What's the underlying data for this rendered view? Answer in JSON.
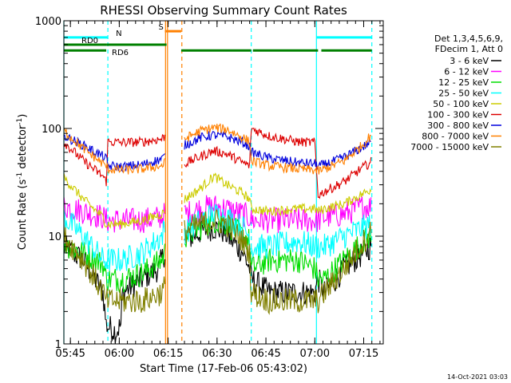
{
  "header": {
    "title": "RHESSI Observing Summary Count Rates"
  },
  "footer": {
    "timestamp": "14-Oct-2021 03:03"
  },
  "legend": {
    "header_lines": [
      "Det 1,3,4,5,6,9,",
      "FDecim 1, Att 0"
    ],
    "entries": [
      {
        "label": "3 - 6 keV",
        "color": "#000000"
      },
      {
        "label": "6 - 12 keV",
        "color": "#ff00ff"
      },
      {
        "label": "12 - 25 keV",
        "color": "#00dd00"
      },
      {
        "label": "25 - 50 keV",
        "color": "#00ffff"
      },
      {
        "label": "50 - 100 keV",
        "color": "#cccc00"
      },
      {
        "label": "100 - 300 keV",
        "color": "#dd0000"
      },
      {
        "label": "300 - 800 keV",
        "color": "#0000dd"
      },
      {
        "label": "800 - 7000 keV",
        "color": "#ff8000"
      },
      {
        "label": "7000 - 15000 keV",
        "color": "#808000"
      }
    ]
  },
  "chart_data": {
    "type": "line",
    "title": "RHESSI Observing Summary Count Rates",
    "xlabel": "Start Time (17-Feb-06 05:43:02)",
    "ylabel_main": "Count Rate (s",
    "ylabel_sup1": "-1",
    "ylabel_mid": " detector",
    "ylabel_sup2": "-1",
    "ylabel_end": ")",
    "x_unit": "minutes since 05:43:02",
    "xlim": [
      0,
      98
    ],
    "ylim": [
      1,
      1000
    ],
    "yscale": "log",
    "x_ticks": [
      {
        "label": "05:45",
        "value": 2
      },
      {
        "label": "06:00",
        "value": 17
      },
      {
        "label": "06:15",
        "value": 32
      },
      {
        "label": "06:30",
        "value": 47
      },
      {
        "label": "06:45",
        "value": 62
      },
      {
        "label": "07:00",
        "value": 77
      },
      {
        "label": "07:15",
        "value": 92
      }
    ],
    "y_ticks": [
      {
        "label": "1",
        "value": 1
      },
      {
        "label": "10",
        "value": 10
      },
      {
        "label": "100",
        "value": 100
      },
      {
        "label": "1000",
        "value": 1000
      }
    ],
    "gaps": [
      [
        31,
        37
      ]
    ],
    "series": [
      {
        "name": "3 - 6 keV",
        "color": "#000000",
        "points": [
          [
            0,
            8
          ],
          [
            6,
            6
          ],
          [
            12,
            3
          ],
          [
            13,
            1.5
          ],
          [
            16,
            1.3
          ],
          [
            17.5,
            1.5
          ],
          [
            18,
            3
          ],
          [
            24,
            4
          ],
          [
            29,
            5
          ],
          [
            30,
            6
          ],
          [
            31,
            7
          ],
          [
            37,
            9
          ],
          [
            42,
            11
          ],
          [
            46,
            12
          ],
          [
            49,
            11
          ],
          [
            55,
            7
          ],
          [
            57,
            5
          ],
          [
            57.5,
            4
          ],
          [
            63,
            3
          ],
          [
            72,
            3
          ],
          [
            77,
            3
          ],
          [
            78,
            4
          ],
          [
            80,
            3
          ],
          [
            86,
            5
          ],
          [
            92,
            7
          ],
          [
            94,
            8
          ],
          [
            94.5,
            9
          ]
        ]
      },
      {
        "name": "6 - 12 keV",
        "color": "#ff00ff",
        "points": [
          [
            0,
            19
          ],
          [
            6,
            17
          ],
          [
            12,
            15
          ],
          [
            13,
            14
          ],
          [
            18,
            14
          ],
          [
            24,
            14
          ],
          [
            30,
            15
          ],
          [
            31,
            16
          ],
          [
            37,
            16
          ],
          [
            42,
            18
          ],
          [
            46,
            19
          ],
          [
            50,
            18
          ],
          [
            55,
            16
          ],
          [
            57,
            15
          ],
          [
            57.5,
            14
          ],
          [
            63,
            14
          ],
          [
            72,
            14
          ],
          [
            77,
            14
          ],
          [
            78,
            14
          ],
          [
            80,
            15
          ],
          [
            86,
            16
          ],
          [
            92,
            19
          ],
          [
            94,
            19
          ],
          [
            94.5,
            19
          ]
        ]
      },
      {
        "name": "12 - 25 keV",
        "color": "#00dd00",
        "points": [
          [
            0,
            8.5
          ],
          [
            6,
            7
          ],
          [
            12,
            5.5
          ],
          [
            13,
            4
          ],
          [
            18,
            4
          ],
          [
            24,
            4.5
          ],
          [
            30,
            6
          ],
          [
            31,
            7
          ],
          [
            37,
            10
          ],
          [
            42,
            12
          ],
          [
            46,
            14
          ],
          [
            50,
            13
          ],
          [
            55,
            10
          ],
          [
            57,
            9
          ],
          [
            57.5,
            5
          ],
          [
            63,
            6
          ],
          [
            72,
            6
          ],
          [
            77,
            5
          ],
          [
            78,
            4
          ],
          [
            80,
            4
          ],
          [
            86,
            6
          ],
          [
            92,
            9
          ],
          [
            94,
            10
          ],
          [
            94.5,
            10
          ]
        ]
      },
      {
        "name": "25 - 50 keV",
        "color": "#00ffff",
        "points": [
          [
            0,
            15
          ],
          [
            6,
            10
          ],
          [
            12,
            6
          ],
          [
            13,
            6
          ],
          [
            18,
            6
          ],
          [
            24,
            7
          ],
          [
            30,
            10
          ],
          [
            31,
            12
          ],
          [
            37,
            11
          ],
          [
            42,
            14
          ],
          [
            46,
            16
          ],
          [
            50,
            15
          ],
          [
            55,
            12
          ],
          [
            57,
            10
          ],
          [
            57.5,
            8
          ],
          [
            63,
            8
          ],
          [
            72,
            9
          ],
          [
            77,
            8
          ],
          [
            78,
            8
          ],
          [
            80,
            8
          ],
          [
            86,
            10
          ],
          [
            92,
            12
          ],
          [
            94,
            13
          ],
          [
            94.5,
            13
          ]
        ]
      },
      {
        "name": "50 - 100 keV",
        "color": "#cccc00",
        "points": [
          [
            0,
            35
          ],
          [
            6,
            22
          ],
          [
            12,
            15
          ],
          [
            13,
            13
          ],
          [
            18,
            13
          ],
          [
            24,
            14
          ],
          [
            30,
            16
          ],
          [
            31,
            17
          ],
          [
            37,
            22
          ],
          [
            42,
            28
          ],
          [
            46,
            36
          ],
          [
            50,
            30
          ],
          [
            55,
            25
          ],
          [
            57,
            22
          ],
          [
            57.5,
            18
          ],
          [
            63,
            17
          ],
          [
            72,
            18
          ],
          [
            77,
            18
          ],
          [
            78,
            17
          ],
          [
            80,
            18
          ],
          [
            86,
            20
          ],
          [
            92,
            25
          ],
          [
            94,
            27
          ],
          [
            94.5,
            28
          ]
        ]
      },
      {
        "name": "100 - 300 keV",
        "color": "#dd0000",
        "points": [
          [
            0,
            75
          ],
          [
            6,
            50
          ],
          [
            12,
            36
          ],
          [
            13,
            32
          ],
          [
            13.5,
            75
          ],
          [
            18,
            74
          ],
          [
            24,
            75
          ],
          [
            30,
            80
          ],
          [
            31,
            85
          ],
          [
            37,
            47
          ],
          [
            42,
            55
          ],
          [
            46,
            62
          ],
          [
            50,
            58
          ],
          [
            55,
            48
          ],
          [
            57,
            45
          ],
          [
            57.5,
            100
          ],
          [
            63,
            85
          ],
          [
            72,
            75
          ],
          [
            77,
            74
          ],
          [
            78,
            24
          ],
          [
            80,
            26
          ],
          [
            86,
            32
          ],
          [
            92,
            44
          ],
          [
            94,
            48
          ],
          [
            94.5,
            50
          ]
        ]
      },
      {
        "name": "300 - 800 keV",
        "color": "#0000dd",
        "points": [
          [
            0,
            85
          ],
          [
            6,
            70
          ],
          [
            12,
            55
          ],
          [
            13,
            52
          ],
          [
            13.5,
            45
          ],
          [
            18,
            44
          ],
          [
            24,
            46
          ],
          [
            30,
            52
          ],
          [
            31,
            55
          ],
          [
            37,
            70
          ],
          [
            42,
            82
          ],
          [
            46,
            87
          ],
          [
            50,
            84
          ],
          [
            55,
            74
          ],
          [
            57,
            68
          ],
          [
            57.5,
            60
          ],
          [
            63,
            53
          ],
          [
            72,
            48
          ],
          [
            77,
            47
          ],
          [
            78,
            45
          ],
          [
            80,
            46
          ],
          [
            86,
            54
          ],
          [
            92,
            68
          ],
          [
            94,
            75
          ],
          [
            94.5,
            80
          ]
        ]
      },
      {
        "name": "800 - 7000 keV",
        "color": "#ff8000",
        "points": [
          [
            0,
            95
          ],
          [
            6,
            65
          ],
          [
            12,
            47
          ],
          [
            13,
            45
          ],
          [
            13.5,
            42
          ],
          [
            18,
            41
          ],
          [
            24,
            42
          ],
          [
            30,
            45
          ],
          [
            31,
            48
          ],
          [
            37,
            80
          ],
          [
            42,
            95
          ],
          [
            46,
            102
          ],
          [
            50,
            98
          ],
          [
            55,
            82
          ],
          [
            57,
            75
          ],
          [
            57.5,
            50
          ],
          [
            63,
            45
          ],
          [
            72,
            42
          ],
          [
            77,
            41
          ],
          [
            78,
            40
          ],
          [
            80,
            42
          ],
          [
            86,
            50
          ],
          [
            92,
            72
          ],
          [
            94,
            85
          ],
          [
            94.5,
            90
          ]
        ]
      },
      {
        "name": "7000 - 15000 keV",
        "color": "#808000",
        "points": [
          [
            0,
            10
          ],
          [
            6,
            6
          ],
          [
            12,
            3
          ],
          [
            13,
            2.5
          ],
          [
            18,
            2.5
          ],
          [
            24,
            2.5
          ],
          [
            30,
            3
          ],
          [
            31,
            3.5
          ],
          [
            37,
            11
          ],
          [
            42,
            13
          ],
          [
            46,
            14
          ],
          [
            50,
            13
          ],
          [
            55,
            9
          ],
          [
            57,
            7
          ],
          [
            57.5,
            3
          ],
          [
            63,
            2.5
          ],
          [
            72,
            2.5
          ],
          [
            77,
            2.5
          ],
          [
            78,
            2.5
          ],
          [
            80,
            3
          ],
          [
            86,
            5
          ],
          [
            92,
            9
          ],
          [
            94,
            11
          ],
          [
            94.5,
            12
          ]
        ]
      }
    ],
    "status_bars": [
      {
        "label": "N",
        "color": "#00ffff",
        "value": 700,
        "spans": [
          [
            0,
            13.5
          ],
          [
            77.5,
            94.5
          ]
        ]
      },
      {
        "label": "RD0",
        "color": "#008000",
        "value": 600,
        "spans": [
          [
            0,
            13
          ],
          [
            13,
            31.5
          ]
        ]
      },
      {
        "label": "RD6",
        "color": "#008000",
        "value": 530,
        "spans": [
          [
            0,
            13
          ],
          [
            36,
            57.5
          ],
          [
            58,
            78
          ],
          [
            79,
            94.5
          ]
        ]
      },
      {
        "label": "S",
        "color": "#ff8000",
        "value": 800,
        "spans": [
          [
            31,
            36
          ]
        ]
      }
    ],
    "vlines": [
      {
        "x": 0,
        "color": "#00ffff",
        "style": "solid"
      },
      {
        "x": 13.5,
        "color": "#00ffff",
        "style": "dashed"
      },
      {
        "x": 31.2,
        "color": "#ff8000",
        "style": "solid"
      },
      {
        "x": 31.8,
        "color": "#ff8000",
        "style": "solid"
      },
      {
        "x": 36.2,
        "color": "#ff8000",
        "style": "dashed"
      },
      {
        "x": 57.5,
        "color": "#00ffff",
        "style": "dashed"
      },
      {
        "x": 77.5,
        "color": "#00ffff",
        "style": "solid"
      },
      {
        "x": 94.5,
        "color": "#00ffff",
        "style": "dashed"
      }
    ]
  }
}
